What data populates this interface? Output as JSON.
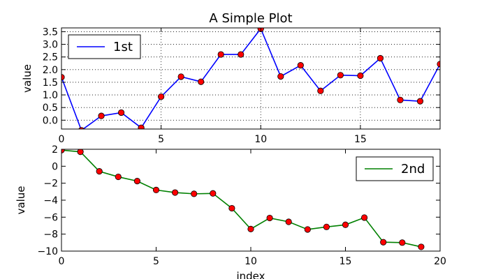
{
  "chart_data": [
    {
      "type": "line",
      "title": "A Simple Plot",
      "xlabel": "",
      "ylabel": "value",
      "xlim": [
        0,
        19
      ],
      "ylim": [
        -0.35,
        3.65
      ],
      "xticks": [
        0,
        5,
        10,
        15
      ],
      "yticks": [
        0.0,
        0.5,
        1.0,
        1.5,
        2.0,
        2.5,
        3.0,
        3.5
      ],
      "ytick_labels": [
        "0.0",
        "0.5",
        "1.0",
        "1.5",
        "2.0",
        "2.5",
        "3.0",
        "3.5"
      ],
      "grid": true,
      "legend_position": "top-left",
      "series": [
        {
          "name": "1st",
          "color": "#0000ff",
          "marker_color": "#ff0000",
          "x": [
            0,
            1,
            2,
            3,
            4,
            5,
            6,
            7,
            8,
            9,
            10,
            11,
            12,
            13,
            14,
            15,
            16,
            17,
            18,
            19
          ],
          "values": [
            1.7,
            -0.4,
            0.17,
            0.3,
            -0.3,
            0.93,
            1.72,
            1.52,
            2.6,
            2.6,
            3.62,
            1.73,
            2.17,
            1.16,
            1.78,
            1.76,
            2.45,
            0.8,
            0.75,
            2.22
          ]
        }
      ]
    },
    {
      "type": "line",
      "title": "",
      "xlabel": "index",
      "ylabel": "value",
      "xlim": [
        0,
        20
      ],
      "ylim": [
        -10,
        2
      ],
      "xticks": [
        0,
        5,
        10,
        15,
        20
      ],
      "yticks": [
        2,
        0,
        -2,
        -4,
        -6,
        -8,
        -10
      ],
      "ytick_labels": [
        "2",
        "0",
        "−2",
        "−4",
        "−6",
        "−8",
        "−10"
      ],
      "grid": false,
      "legend_position": "top-right",
      "series": [
        {
          "name": "2nd",
          "color": "#008000",
          "marker_color": "#ff0000",
          "x": [
            0,
            1,
            2,
            3,
            4,
            5,
            6,
            7,
            8,
            9,
            10,
            11,
            12,
            13,
            14,
            15,
            16,
            17,
            18,
            19
          ],
          "values": [
            1.9,
            1.7,
            -0.6,
            -1.25,
            -1.75,
            -2.8,
            -3.1,
            -3.25,
            -3.2,
            -4.95,
            -7.4,
            -6.1,
            -6.55,
            -7.45,
            -7.15,
            -6.9,
            -6.05,
            -8.95,
            -9.0,
            -9.5
          ]
        }
      ]
    }
  ]
}
